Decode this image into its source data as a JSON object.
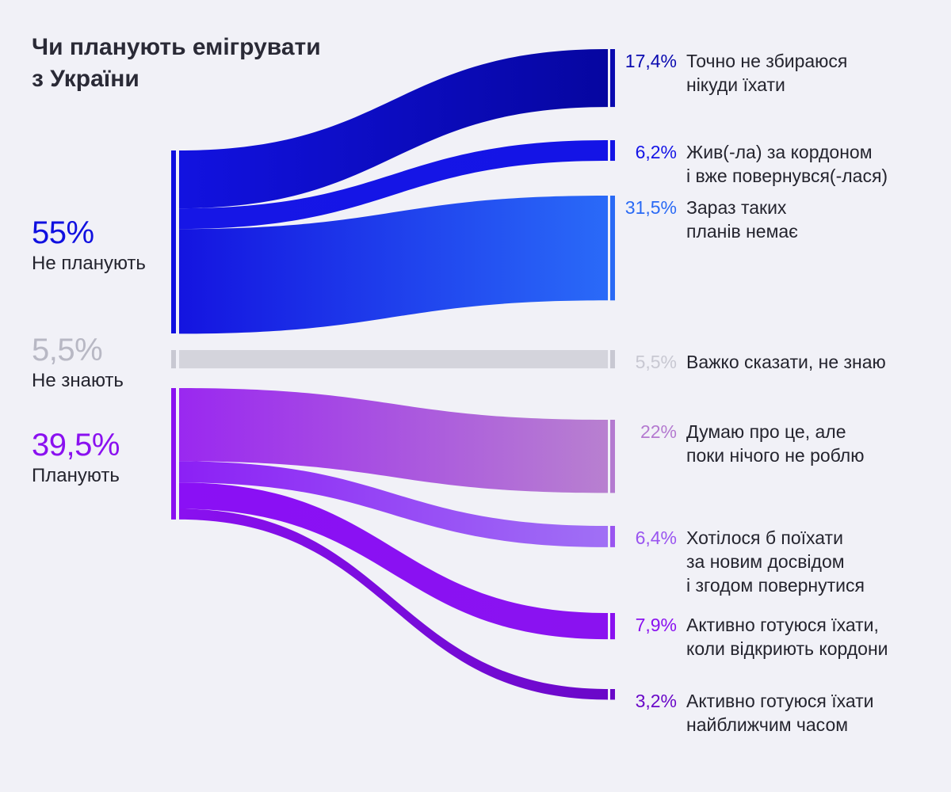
{
  "chart_data": {
    "type": "sankey",
    "title": [
      "Чи планують емігрувати",
      "з України"
    ],
    "sources": [
      {
        "id": "no",
        "value": 55,
        "value_text": "55%",
        "label": "Не планують",
        "color": "#1010e0"
      },
      {
        "id": "dk",
        "value": 5.5,
        "value_text": "5,5%",
        "label": "Не знають",
        "color": "#c8c8d2"
      },
      {
        "id": "plan",
        "value": 39.5,
        "value_text": "39,5%",
        "label": "Планують",
        "color": "#8a10f0"
      }
    ],
    "targets": [
      {
        "source": "no",
        "value": 17.4,
        "value_text": "17,4%",
        "label": [
          "Точно не збираюся",
          "нікуди їхати"
        ],
        "color": "#0a0ab0",
        "from": "#1212e0",
        "to": "#0606a0"
      },
      {
        "source": "no",
        "value": 6.2,
        "value_text": "6,2%",
        "label": [
          "Жив(-ла) за кордоном",
          "і вже повернувся(-лася)"
        ],
        "color": "#1414e6",
        "from": "#1616e6",
        "to": "#1414e6"
      },
      {
        "source": "no",
        "value": 31.5,
        "value_text": "31,5%",
        "label": [
          "Зараз таких",
          "планів немає"
        ],
        "color": "#2a6af5",
        "from": "#1414e0",
        "to": "#2a6af8"
      },
      {
        "source": "dk",
        "value": 5.5,
        "value_text": "5,5%",
        "label": [
          "Важко сказати, не знаю"
        ],
        "color": "#c8c8d2",
        "from": "#d4d4dc",
        "to": "#d4d4dc"
      },
      {
        "source": "plan",
        "value": 22,
        "value_text": "22%",
        "label": [
          "Думаю про це, але",
          "поки нічого не роблю"
        ],
        "color": "#b47ad0",
        "from": "#9a28f0",
        "to": "#b880d0"
      },
      {
        "source": "plan",
        "value": 6.4,
        "value_text": "6,4%",
        "label": [
          "Хотілося б поїхати",
          "за новим досвідом",
          "і згодом повернутися"
        ],
        "color": "#9a55f0",
        "from": "#8c20f5",
        "to": "#a070f5"
      },
      {
        "source": "plan",
        "value": 7.9,
        "value_text": "7,9%",
        "label": [
          "Активно готуюся їхати,",
          "коли відкриють кордони"
        ],
        "color": "#8a10f0",
        "from": "#8a10f5",
        "to": "#8a12f0"
      },
      {
        "source": "plan",
        "value": 3.2,
        "value_text": "3,2%",
        "label": [
          "Активно готуюся їхати",
          "найближчим часом"
        ],
        "color": "#6a08c8",
        "from": "#8a10f0",
        "to": "#6a08c8"
      }
    ]
  }
}
